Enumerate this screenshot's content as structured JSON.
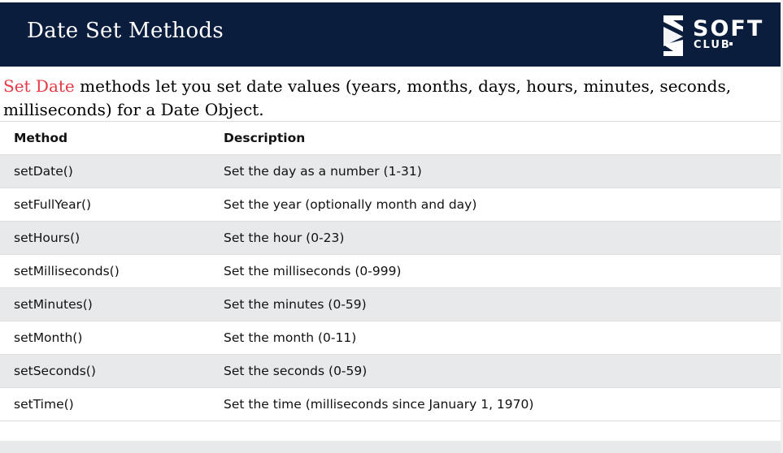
{
  "header": {
    "title": "Date Set Methods",
    "logo_word": "SOFT",
    "logo_sub": "CLUB"
  },
  "intro": {
    "highlight": "Set Date",
    "text": " methods let you set date values (years, months, days, hours, minutes, seconds, milliseconds) for a Date Object."
  },
  "colors": {
    "header_bg": "#0b1d3d",
    "highlight": "#e63946",
    "row_stripe": "#e7e9eb"
  },
  "table": {
    "headers": [
      "Method",
      "Description"
    ],
    "rows": [
      [
        "setDate()",
        "Set the day as a number (1-31)"
      ],
      [
        "setFullYear()",
        "Set the year (optionally month and day)"
      ],
      [
        "setHours()",
        "Set the hour (0-23)"
      ],
      [
        "setMilliseconds()",
        "Set the milliseconds (0-999)"
      ],
      [
        "setMinutes()",
        "Set the minutes (0-59)"
      ],
      [
        "setMonth()",
        "Set the month (0-11)"
      ],
      [
        "setSeconds()",
        "Set the seconds (0-59)"
      ],
      [
        "setTime()",
        "Set the time (milliseconds since January 1, 1970)"
      ]
    ]
  }
}
